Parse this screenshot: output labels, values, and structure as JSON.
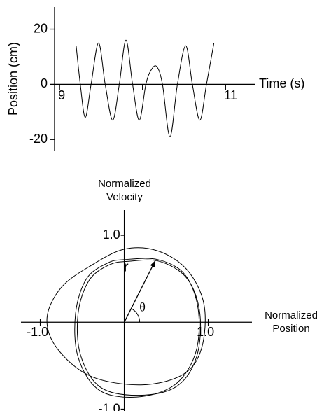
{
  "chart_data": [
    {
      "type": "line",
      "y_label": "Position (cm)",
      "x_label": "Time (s)",
      "color": "#000000",
      "x": [
        9.2,
        9.25,
        9.31,
        9.38,
        9.47,
        9.55,
        9.64,
        9.72,
        9.8,
        9.88,
        9.96,
        10.04,
        10.1,
        10.17,
        10.24,
        10.33,
        10.42,
        10.52,
        10.6,
        10.69,
        10.77,
        10.86
      ],
      "values": [
        14,
        0,
        -12,
        0,
        15,
        0,
        -13,
        0,
        16,
        0,
        -13,
        0,
        5,
        6.5,
        0,
        -19,
        0,
        14,
        0,
        -13,
        0,
        15
      ],
      "xlim": [
        8.94,
        11.36
      ],
      "ylim": [
        -24,
        28
      ],
      "xticks": [
        9,
        11
      ],
      "xminor_ticks": [
        10
      ],
      "yticks": [
        20,
        0,
        -20
      ]
    },
    {
      "type": "phase",
      "x_label": "Normalized Position",
      "y_label": "Normalized Velocity",
      "closed": true,
      "xlim": [
        -1.23,
        1.52
      ],
      "ylim": [
        -1.02,
        1.29
      ],
      "xticks": [
        {
          "value": -1,
          "label": "-1.0"
        },
        {
          "value": 1,
          "label": "1.0"
        }
      ],
      "yticks": [
        {
          "value": 1,
          "label": "1.0"
        },
        {
          "value": -1,
          "label": "-1.0"
        }
      ],
      "series": [
        {
          "color": "#000000",
          "x": [
            0.0,
            0.4,
            0.75,
            0.95,
            0.92,
            0.7,
            0.2,
            -0.4,
            -0.8,
            -0.92,
            -0.75,
            -0.4
          ],
          "values": [
            0.84,
            0.82,
            0.6,
            0.2,
            -0.3,
            -0.6,
            -0.72,
            -0.62,
            -0.3,
            0.05,
            0.4,
            0.65
          ]
        },
        {
          "color": "#000000",
          "x": [
            0.0,
            0.4,
            0.72,
            0.88,
            0.85,
            0.6,
            0.15,
            -0.3,
            -0.55,
            -0.58,
            -0.45,
            -0.2
          ],
          "values": [
            0.72,
            0.72,
            0.55,
            0.15,
            -0.35,
            -0.72,
            -0.86,
            -0.78,
            -0.4,
            0.1,
            0.5,
            0.68
          ]
        },
        {
          "color": "#000000",
          "x": [
            0.05,
            0.42,
            0.75,
            0.9,
            0.86,
            0.62,
            0.18,
            -0.28,
            -0.52,
            -0.55,
            -0.42,
            -0.18
          ],
          "values": [
            0.7,
            0.7,
            0.5,
            0.1,
            -0.4,
            -0.74,
            -0.84,
            -0.75,
            -0.38,
            0.1,
            0.48,
            0.66
          ]
        }
      ],
      "arrow": {
        "x": 0.37,
        "y": 0.71
      },
      "annotations": [
        {
          "text": "r"
        },
        {
          "text": "θ"
        }
      ]
    }
  ]
}
